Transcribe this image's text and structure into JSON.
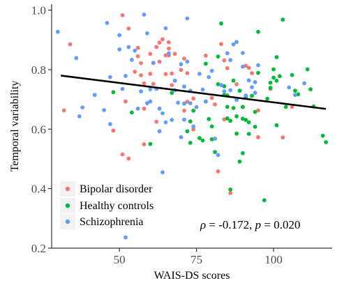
{
  "chart_data": {
    "type": "scatter",
    "title": "",
    "xlabel": "WAIS-DS scores",
    "ylabel": "Temporal variability",
    "xlim": [
      28,
      119
    ],
    "ylim": [
      0.2,
      1.02
    ],
    "x_ticks": [
      50,
      75,
      100
    ],
    "y_ticks": [
      0.2,
      0.4,
      0.6,
      0.8,
      1.0
    ],
    "x_tick_labels": [
      "50",
      "75",
      "100"
    ],
    "y_tick_labels": [
      "0.2",
      "0.4",
      "0.6",
      "0.8",
      "1.0"
    ],
    "grid": false,
    "legend_position": "bottom-left",
    "legend": [
      {
        "name": "Bipolar disorder",
        "color": "#F8766D"
      },
      {
        "name": "Healthy controls",
        "color": "#00BA38"
      },
      {
        "name": "Schizophrenia",
        "color": "#619CFF"
      }
    ],
    "annotation": {
      "rho_symbol": "ρ",
      "rho_text": " = -0.172, ",
      "p_symbol": "p",
      "p_text": " = 0.020"
    },
    "trend_line": {
      "x": [
        31,
        117
      ],
      "y": [
        0.78,
        0.668
      ],
      "color": "#000000"
    },
    "series": [
      {
        "name": "Bipolar disorder",
        "color": "#F8766D",
        "points": [
          [
            32,
            0.663
          ],
          [
            34,
            0.885
          ],
          [
            51,
            0.983
          ],
          [
            53,
            0.938
          ],
          [
            51,
            0.515
          ],
          [
            53,
            0.501
          ],
          [
            48,
            0.595
          ],
          [
            52,
            0.693
          ],
          [
            55,
            0.793
          ],
          [
            56,
            0.845
          ],
          [
            56,
            0.873
          ],
          [
            57,
            0.822
          ],
          [
            57,
            0.781
          ],
          [
            58,
            0.754
          ],
          [
            58,
            0.669
          ],
          [
            58,
            0.549
          ],
          [
            60,
            0.853
          ],
          [
            60,
            0.786
          ],
          [
            61,
            0.752
          ],
          [
            61,
            0.822
          ],
          [
            62,
            0.876
          ],
          [
            62,
            0.625
          ],
          [
            63,
            0.827
          ],
          [
            63,
            0.891
          ],
          [
            64,
            0.902
          ],
          [
            65,
            0.848
          ],
          [
            65,
            0.785
          ],
          [
            66,
            0.892
          ],
          [
            66,
            0.871
          ],
          [
            66,
            0.848
          ],
          [
            67,
            0.787
          ],
          [
            67,
            0.748
          ],
          [
            68,
            0.853
          ],
          [
            70,
            0.799
          ],
          [
            71,
            0.837
          ],
          [
            71,
            0.662
          ],
          [
            72,
            0.788
          ],
          [
            72,
            0.692
          ],
          [
            74,
            0.703
          ],
          [
            74,
            0.599
          ],
          [
            78,
            0.847
          ],
          [
            80,
            0.705
          ],
          [
            81,
            0.683
          ],
          [
            82,
            0.458
          ],
          [
            83,
            0.886
          ],
          [
            84,
            0.831
          ],
          [
            85,
            0.805
          ],
          [
            86,
            0.385
          ],
          [
            88,
            0.751
          ],
          [
            90,
            0.674
          ],
          [
            91,
            0.813
          ],
          [
            92,
            0.806
          ],
          [
            93,
            0.788
          ],
          [
            95,
            0.663
          ],
          [
            99,
            0.735
          ],
          [
            103,
            0.572
          ],
          [
            106,
            0.675
          ],
          [
            95,
            0.573
          ],
          [
            84,
            0.633
          ]
        ]
      },
      {
        "name": "Healthy controls",
        "color": "#00BA38",
        "points": [
          [
            48,
            0.724
          ],
          [
            54,
            0.656
          ],
          [
            60,
            0.55
          ],
          [
            67,
            0.722
          ],
          [
            72,
            0.593
          ],
          [
            73,
            0.554
          ],
          [
            73,
            0.626
          ],
          [
            74,
            0.662
          ],
          [
            76,
            0.57
          ],
          [
            77,
            0.562
          ],
          [
            78,
            0.693
          ],
          [
            79,
            0.634
          ],
          [
            80,
            0.609
          ],
          [
            80,
            0.566
          ],
          [
            81,
            0.523
          ],
          [
            82,
            0.751
          ],
          [
            82,
            0.844
          ],
          [
            83,
            0.955
          ],
          [
            84,
            0.744
          ],
          [
            84,
            0.715
          ],
          [
            85,
            0.713
          ],
          [
            85,
            0.675
          ],
          [
            85,
            0.636
          ],
          [
            86,
            0.628
          ],
          [
            86,
            0.397
          ],
          [
            87,
            0.763
          ],
          [
            87,
            0.671
          ],
          [
            88,
            0.701
          ],
          [
            88,
            0.643
          ],
          [
            88,
            0.585
          ],
          [
            89,
            0.729
          ],
          [
            89,
            0.491
          ],
          [
            90,
            0.675
          ],
          [
            90,
            0.635
          ],
          [
            90,
            0.519
          ],
          [
            91,
            0.708
          ],
          [
            91,
            0.631
          ],
          [
            92,
            0.623
          ],
          [
            92,
            0.584
          ],
          [
            93,
            0.712
          ],
          [
            94,
            0.608
          ],
          [
            94,
            0.658
          ],
          [
            95,
            0.927
          ],
          [
            95,
            0.789
          ],
          [
            97,
            0.361
          ],
          [
            98,
            0.702
          ],
          [
            99,
            0.739
          ],
          [
            99,
            0.756
          ],
          [
            100,
            0.801
          ],
          [
            100,
            0.773
          ],
          [
            101,
            0.842
          ],
          [
            101,
            0.613
          ],
          [
            101,
            0.763
          ],
          [
            102,
            0.778
          ],
          [
            103,
            0.968
          ],
          [
            104,
            0.675
          ],
          [
            106,
            0.782
          ],
          [
            107,
            0.729
          ],
          [
            108,
            0.717
          ],
          [
            111,
            0.801
          ],
          [
            112,
            0.734
          ],
          [
            113,
            0.676
          ],
          [
            116,
            0.578
          ],
          [
            117,
            0.556
          ],
          [
            78,
            0.82
          ]
        ]
      },
      {
        "name": "Schizophrenia",
        "color": "#619CFF",
        "points": [
          [
            30,
            0.927
          ],
          [
            36,
            0.839
          ],
          [
            37,
            0.643
          ],
          [
            38,
            0.673
          ],
          [
            42,
            0.715
          ],
          [
            45,
            0.664
          ],
          [
            46,
            0.957
          ],
          [
            47,
            0.617
          ],
          [
            47,
            0.775
          ],
          [
            50,
            0.868
          ],
          [
            50,
            0.916
          ],
          [
            51,
            0.735
          ],
          [
            52,
            0.779
          ],
          [
            53,
            0.876
          ],
          [
            54,
            0.833
          ],
          [
            55,
            0.864
          ],
          [
            56,
            0.669
          ],
          [
            57,
            0.727
          ],
          [
            58,
            0.985
          ],
          [
            59,
            0.922
          ],
          [
            59,
            0.687
          ],
          [
            60,
            0.693
          ],
          [
            60,
            0.734
          ],
          [
            61,
            0.823
          ],
          [
            62,
            0.735
          ],
          [
            63,
            0.669
          ],
          [
            63,
            0.593
          ],
          [
            64,
            0.653
          ],
          [
            64,
            0.455
          ],
          [
            65,
            0.939
          ],
          [
            65,
            0.623
          ],
          [
            67,
            0.631
          ],
          [
            68,
            0.763
          ],
          [
            68,
            0.731
          ],
          [
            69,
            0.689
          ],
          [
            70,
            0.818
          ],
          [
            70,
            0.573
          ],
          [
            71,
            0.632
          ],
          [
            71,
            0.743
          ],
          [
            72,
            0.972
          ],
          [
            72,
            0.827
          ],
          [
            73,
            0.729
          ],
          [
            73,
            0.687
          ],
          [
            74,
            0.609
          ],
          [
            75,
            0.674
          ],
          [
            76,
            0.786
          ],
          [
            77,
            0.733
          ],
          [
            78,
            0.693
          ],
          [
            79,
            0.775
          ],
          [
            80,
            0.796
          ],
          [
            81,
            0.568
          ],
          [
            82,
            0.513
          ],
          [
            83,
            0.748
          ],
          [
            84,
            0.727
          ],
          [
            85,
            0.855
          ],
          [
            86,
            0.832
          ],
          [
            86,
            0.731
          ],
          [
            87,
            0.885
          ],
          [
            88,
            0.893
          ],
          [
            88,
            0.698
          ],
          [
            90,
            0.856
          ],
          [
            90,
            0.81
          ],
          [
            91,
            0.713
          ],
          [
            92,
            0.764
          ],
          [
            93,
            0.741
          ],
          [
            94,
            0.758
          ],
          [
            94,
            0.722
          ],
          [
            95,
            0.815
          ],
          [
            105,
            0.74
          ],
          [
            107,
            0.715
          ],
          [
            110,
            0.754
          ],
          [
            52,
            0.236
          ],
          [
            66,
            0.855
          ],
          [
            71,
            0.686
          ]
        ]
      }
    ]
  }
}
